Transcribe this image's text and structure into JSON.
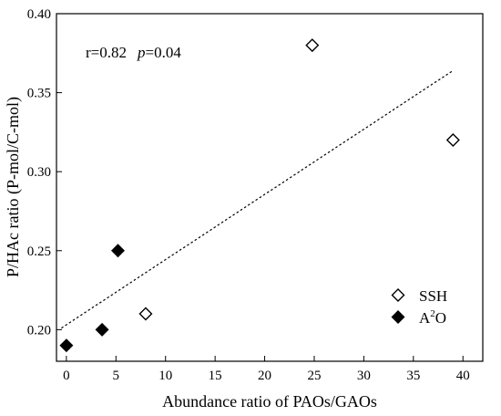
{
  "chart_data": {
    "type": "scatter",
    "xlabel": "Abundance ratio of PAOs/GAOs",
    "ylabel": "P/HAc ratio (P-mol/C-mol)",
    "xlim": [
      -1,
      42
    ],
    "ylim": [
      0.18,
      0.4
    ],
    "x_ticks": [
      0,
      5,
      10,
      15,
      20,
      25,
      30,
      35,
      40
    ],
    "y_ticks": [
      0.2,
      0.25,
      0.3,
      0.35,
      0.4
    ],
    "grid": false,
    "legend_position": "bottom-right",
    "annotation": {
      "r_text": "r=0.82",
      "p_symbol": "p",
      "p_value": "=0.04"
    },
    "series": [
      {
        "name": "SSH",
        "marker": "open-diamond",
        "color": "#000000",
        "points": [
          [
            8.0,
            0.21
          ],
          [
            24.8,
            0.38
          ],
          [
            39.0,
            0.32
          ]
        ]
      },
      {
        "name_base": "A",
        "name_sup": "2",
        "name_tail": "O",
        "marker": "filled-diamond",
        "color": "#000000",
        "points": [
          [
            0.0,
            0.19
          ],
          [
            3.6,
            0.2
          ],
          [
            5.2,
            0.25
          ]
        ]
      }
    ],
    "trendline": {
      "style": "dotted",
      "x": [
        -0.5,
        39.0
      ],
      "y": [
        0.201,
        0.364
      ]
    }
  }
}
